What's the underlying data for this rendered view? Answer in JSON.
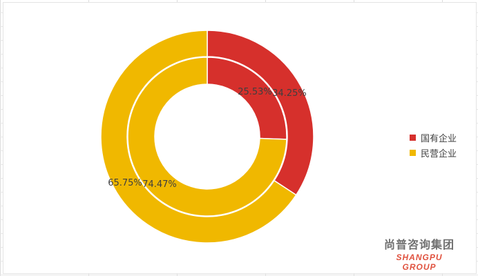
{
  "chart_data": {
    "type": "donut",
    "categories": [
      "国有企业",
      "民营企业"
    ],
    "colors": [
      "#d6302c",
      "#f0b800"
    ],
    "series": [
      {
        "ring": "inner",
        "values": [
          25.53,
          74.47
        ],
        "labels": [
          "25.53%",
          "74.47%"
        ]
      },
      {
        "ring": "outer",
        "values": [
          34.25,
          65.75
        ],
        "labels": [
          "34.25%",
          "65.75%"
        ]
      }
    ],
    "legend": {
      "position": "right",
      "items": [
        "国有企业",
        "民营企业"
      ]
    }
  },
  "watermark": {
    "name_cn": "尚普咨询集团",
    "name_en": "SHANGPU GROUP"
  }
}
